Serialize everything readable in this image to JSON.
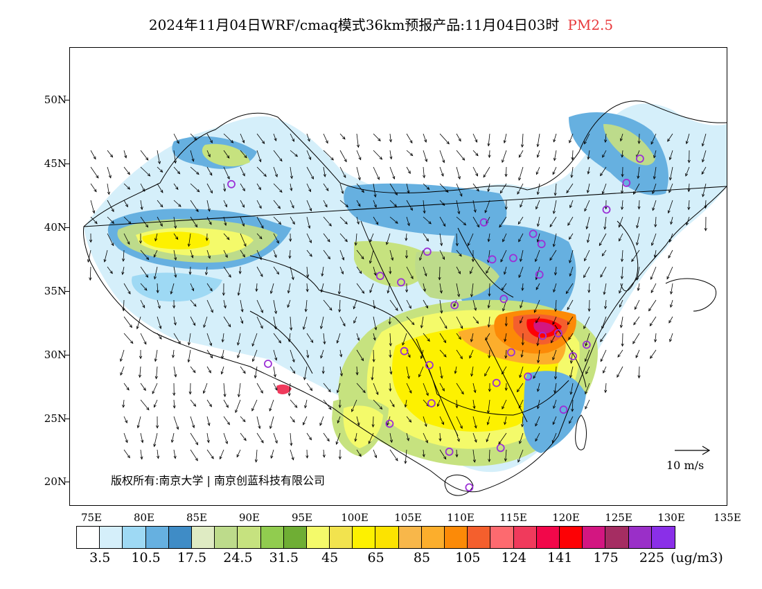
{
  "title": {
    "main": "2024年11月04日WRF/cmaq模式36km预报产品:11月04日03时",
    "species": "PM2.5"
  },
  "colors": {
    "species_label": "#e8383b",
    "site_marker": "#9b2fd6",
    "boundary": "#000000"
  },
  "axes": {
    "lat_labels": [
      "50N",
      "45N",
      "40N",
      "35N",
      "30N",
      "25N",
      "20N"
    ],
    "lon_labels": [
      "75E",
      "80E",
      "85E",
      "90E",
      "95E",
      "100E",
      "105E",
      "110E",
      "115E",
      "120E",
      "125E",
      "130E",
      "135E"
    ]
  },
  "copyright": "版权所有:南京大学 | 南京创蓝科技有限公司",
  "wind_reference": {
    "label": "10 m/s",
    "icon": "arrow-right-icon"
  },
  "colorbar": {
    "colors": [
      "#ffffff",
      "#d5effa",
      "#9ed9f4",
      "#66b0e0",
      "#3f8cc6",
      "#dfebc3",
      "#bddb8b",
      "#c6e27f",
      "#91cc4f",
      "#6fae34",
      "#f4fa6a",
      "#f2e34e",
      "#fdf100",
      "#fce300",
      "#f8b74a",
      "#fcae2c",
      "#fc8a07",
      "#f45f2d",
      "#fd6a6f",
      "#f03a5c",
      "#f2074a",
      "#fd0105",
      "#d31681",
      "#a52d62",
      "#9a2fc8",
      "#8a2fe8"
    ],
    "labels": [
      "3.5",
      "10.5",
      "17.5",
      "24.5",
      "31.5",
      "45",
      "65",
      "85",
      "105",
      "124",
      "141",
      "175",
      "225"
    ],
    "unit": "(ug/m3)"
  },
  "monitoring_sites": [
    {
      "lon": 87.6,
      "lat": 43.8
    },
    {
      "lon": 91.1,
      "lat": 29.7
    },
    {
      "lon": 101.8,
      "lat": 36.6
    },
    {
      "lon": 103.8,
      "lat": 36.1
    },
    {
      "lon": 106.3,
      "lat": 38.5
    },
    {
      "lon": 104.1,
      "lat": 30.7
    },
    {
      "lon": 106.5,
      "lat": 29.6
    },
    {
      "lon": 106.7,
      "lat": 26.6
    },
    {
      "lon": 102.7,
      "lat": 25.0
    },
    {
      "lon": 108.4,
      "lat": 22.8
    },
    {
      "lon": 110.3,
      "lat": 20.0
    },
    {
      "lon": 113.3,
      "lat": 23.1
    },
    {
      "lon": 108.9,
      "lat": 34.3
    },
    {
      "lon": 111.7,
      "lat": 40.8
    },
    {
      "lon": 112.5,
      "lat": 37.9
    },
    {
      "lon": 114.5,
      "lat": 38.0
    },
    {
      "lon": 116.4,
      "lat": 39.9
    },
    {
      "lon": 117.2,
      "lat": 39.1
    },
    {
      "lon": 113.6,
      "lat": 34.8
    },
    {
      "lon": 117.0,
      "lat": 36.7
    },
    {
      "lon": 114.3,
      "lat": 30.6
    },
    {
      "lon": 112.9,
      "lat": 28.2
    },
    {
      "lon": 115.9,
      "lat": 28.7
    },
    {
      "lon": 117.3,
      "lat": 31.9
    },
    {
      "lon": 118.8,
      "lat": 32.1
    },
    {
      "lon": 120.2,
      "lat": 30.3
    },
    {
      "lon": 121.5,
      "lat": 31.2
    },
    {
      "lon": 119.3,
      "lat": 26.1
    },
    {
      "lon": 123.4,
      "lat": 41.8
    },
    {
      "lon": 125.3,
      "lat": 43.9
    },
    {
      "lon": 126.6,
      "lat": 45.8
    }
  ]
}
